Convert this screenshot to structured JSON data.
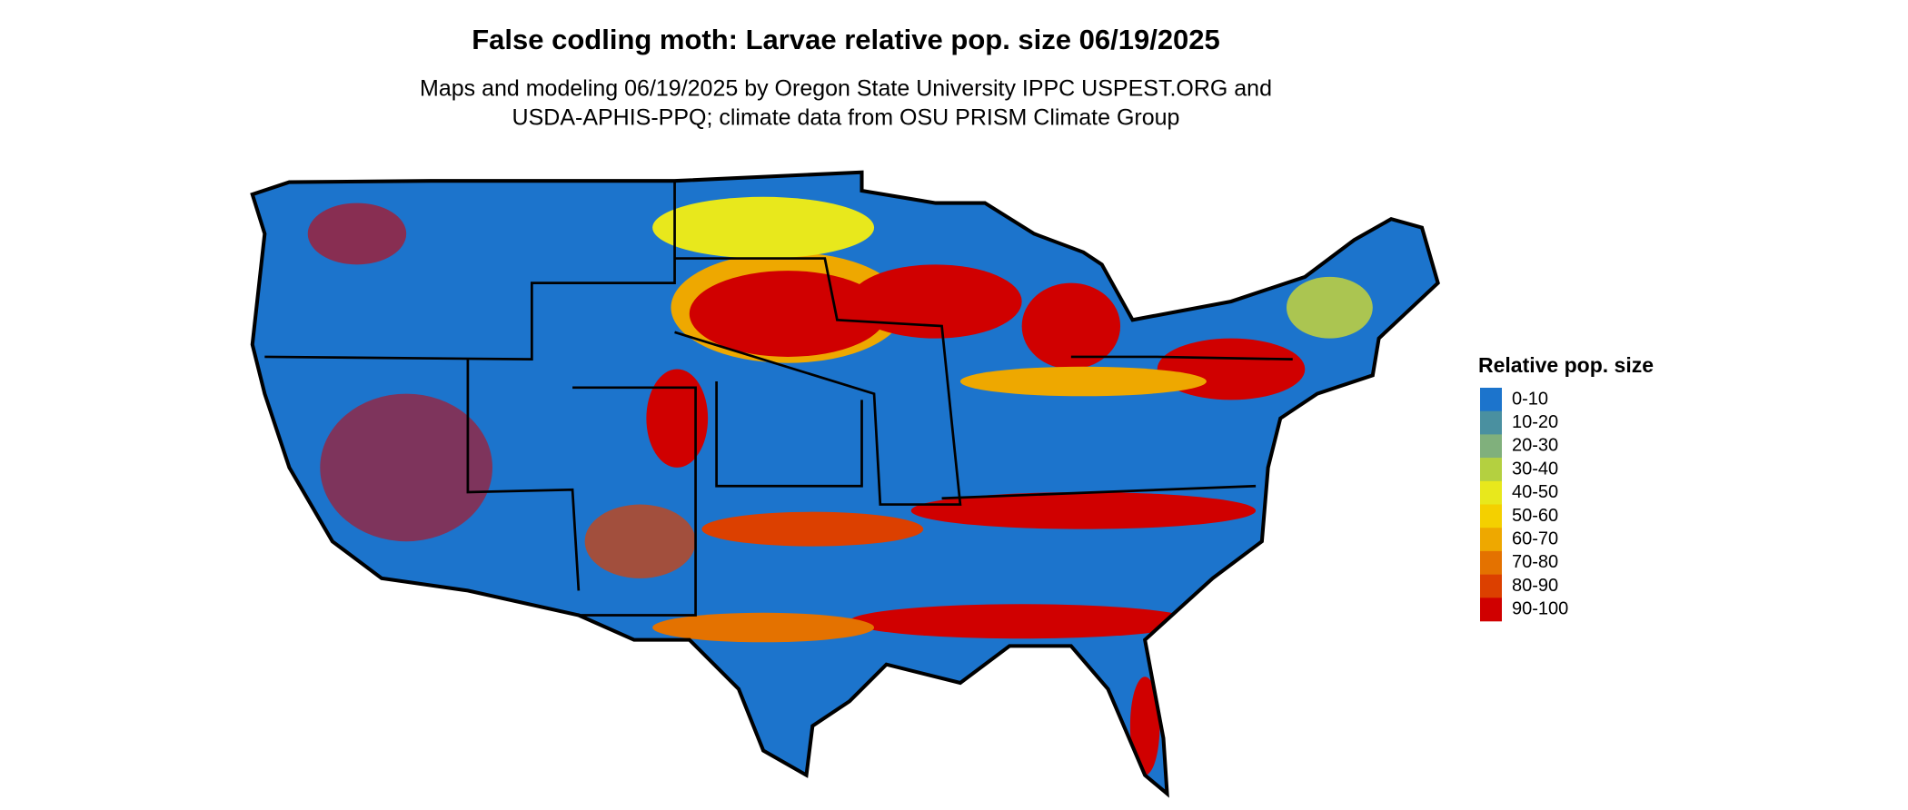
{
  "header": {
    "title": "False codling moth: Larvae relative pop. size 06/19/2025",
    "subtitle": [
      "Maps and modeling 06/19/2025 by Oregon State University IPPC USPEST.ORG and",
      "USDA-APHIS-PPQ; climate data from OSU PRISM Climate Group"
    ]
  },
  "legend": {
    "title": "Relative pop. size",
    "items": [
      {
        "label": "0-10",
        "color": "#1c74cc"
      },
      {
        "label": "10-20",
        "color": "#4a90a0"
      },
      {
        "label": "20-30",
        "color": "#80b07c"
      },
      {
        "label": "30-40",
        "color": "#b4d040"
      },
      {
        "label": "40-50",
        "color": "#e8e81c"
      },
      {
        "label": "50-60",
        "color": "#f4d000"
      },
      {
        "label": "60-70",
        "color": "#eea800"
      },
      {
        "label": "70-80",
        "color": "#e47200"
      },
      {
        "label": "80-90",
        "color": "#dc4000"
      },
      {
        "label": "90-100",
        "color": "#d00000"
      }
    ]
  }
}
